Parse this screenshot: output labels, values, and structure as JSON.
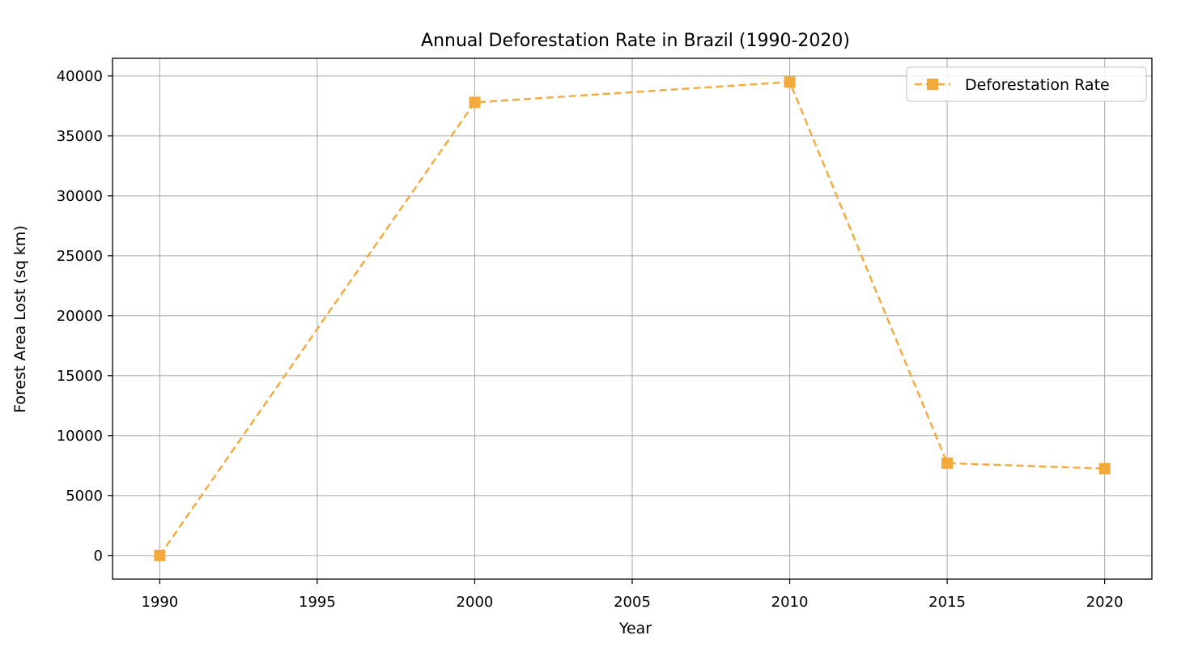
{
  "chart_data": {
    "type": "line",
    "title": "Annual Deforestation Rate in Brazil (1990-2020)",
    "xlabel": "Year",
    "ylabel": "Forest Area Lost (sq km)",
    "x": [
      1990,
      2000,
      2010,
      2015,
      2020
    ],
    "series": [
      {
        "name": "Deforestation Rate",
        "values": [
          0,
          37800,
          39500,
          7700,
          7250
        ],
        "color": "#F4A93B",
        "line_style": "dashed",
        "marker": "square"
      }
    ],
    "xlim": [
      1988.5,
      2021.5
    ],
    "ylim": [
      -1975,
      41475
    ],
    "x_ticks": [
      "1990",
      "1995",
      "2000",
      "2005",
      "2010",
      "2015",
      "2020"
    ],
    "y_ticks": [
      "0",
      "5000",
      "10000",
      "15000",
      "20000",
      "25000",
      "30000",
      "35000",
      "40000"
    ],
    "grid": true,
    "legend_position": "top-right"
  }
}
